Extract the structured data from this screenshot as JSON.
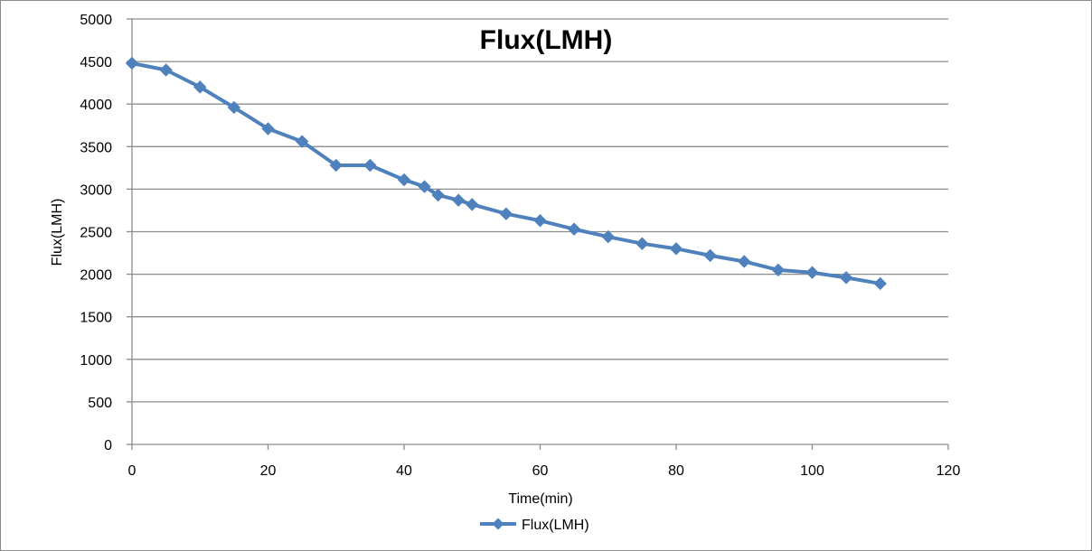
{
  "chart_data": {
    "type": "line",
    "title": "Flux(LMH)",
    "xlabel": "Time(min)",
    "ylabel": "Flux(LMH)",
    "xlim": [
      0,
      120
    ],
    "ylim": [
      0,
      5000
    ],
    "x_ticks": [
      0,
      20,
      40,
      60,
      80,
      100,
      120
    ],
    "y_ticks": [
      0,
      500,
      1000,
      1500,
      2000,
      2500,
      3000,
      3500,
      4000,
      4500,
      5000
    ],
    "grid": "horizontal",
    "legend_position": "bottom",
    "series": [
      {
        "name": "Flux(LMH)",
        "color": "#4f81bd",
        "marker": "diamond",
        "x": [
          0,
          5,
          10,
          15,
          20,
          25,
          30,
          35,
          40,
          43,
          45,
          48,
          50,
          55,
          60,
          65,
          70,
          75,
          80,
          85,
          90,
          95,
          100,
          105,
          110
        ],
        "y": [
          4480,
          4400,
          4200,
          3960,
          3710,
          3560,
          3280,
          3280,
          3110,
          3030,
          2930,
          2870,
          2820,
          2710,
          2630,
          2530,
          2440,
          2360,
          2300,
          2220,
          2150,
          2050,
          2020,
          1960,
          1890
        ]
      }
    ]
  }
}
